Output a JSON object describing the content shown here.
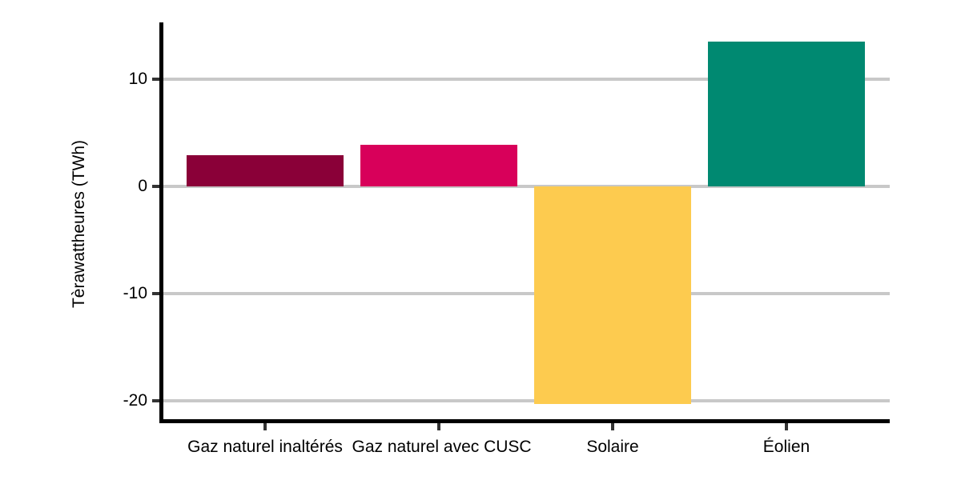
{
  "chart_data": {
    "type": "bar",
    "title": "",
    "categories": [
      "Gaz naturel inaltérés",
      "Gaz naturel avec CUSC",
      "Solaire",
      "Éolien"
    ],
    "values": [
      2.9,
      3.9,
      -20.3,
      13.5
    ],
    "bar_colors": [
      "#8A0038",
      "#D8005A",
      "#FDCB4F",
      "#008971"
    ],
    "xlabel": "",
    "ylabel": "Tèrawattheures (TWh)",
    "ylim": [
      -22.2,
      15.3
    ],
    "yticks": [
      10,
      0,
      -10,
      -20
    ],
    "ytick_labels": [
      "10",
      "0",
      "-10",
      "-20"
    ],
    "grid": "horizontal-only",
    "legend": "none"
  },
  "colors": {
    "background": "#FFFFFF",
    "gridline": "#C8C8C8",
    "axis_line": "#000000",
    "tick_mark": "#333333",
    "text": "#000000"
  }
}
